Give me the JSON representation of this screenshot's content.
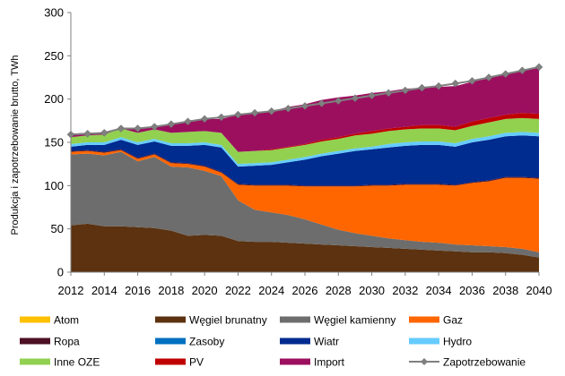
{
  "chart_data": {
    "type": "area",
    "stacked": true,
    "ylabel": "Produkcja i zapotrzebowanie brutto, TWh",
    "xlabel": "",
    "ylim": [
      0,
      300
    ],
    "yticks": [
      0,
      50,
      100,
      150,
      200,
      250,
      300
    ],
    "xlim": [
      2012,
      2040
    ],
    "xticks": [
      2012,
      2014,
      2016,
      2018,
      2020,
      2022,
      2024,
      2026,
      2028,
      2030,
      2032,
      2034,
      2036,
      2038,
      2040
    ],
    "grid": false,
    "legend_position": "bottom",
    "x": [
      2012,
      2013,
      2014,
      2015,
      2016,
      2017,
      2018,
      2019,
      2020,
      2021,
      2022,
      2023,
      2024,
      2025,
      2026,
      2027,
      2028,
      2029,
      2030,
      2031,
      2032,
      2033,
      2034,
      2035,
      2036,
      2037,
      2038,
      2039,
      2040
    ],
    "series": [
      {
        "name": "Atom",
        "color": "#ffc000",
        "values": [
          0,
          0,
          0,
          0,
          0,
          0,
          0,
          0,
          0,
          0,
          0,
          0,
          0,
          0,
          0,
          0,
          0,
          0,
          0,
          0,
          0,
          0,
          0,
          0,
          0,
          0,
          0,
          0,
          0
        ]
      },
      {
        "name": "Węgiel brunatny",
        "color": "#5c3210",
        "values": [
          54,
          56,
          53,
          53,
          52,
          51,
          48,
          42,
          43,
          42,
          36,
          35,
          35,
          34,
          33,
          32,
          31,
          30,
          29,
          28,
          27,
          26,
          25,
          24,
          23,
          23,
          22,
          20,
          17
        ]
      },
      {
        "name": "Węgiel kamienny",
        "color": "#6d6d6d",
        "values": [
          82,
          81,
          82,
          86,
          76,
          82,
          74,
          79,
          74,
          69,
          47,
          37,
          34,
          32,
          28,
          23,
          18,
          15,
          13,
          11,
          10,
          9,
          9,
          8,
          8,
          7,
          7,
          7,
          6
        ]
      },
      {
        "name": "Gaz",
        "color": "#ff6600",
        "values": [
          3,
          3,
          3,
          2,
          3,
          3,
          4,
          4,
          5,
          4,
          18,
          28,
          31,
          34,
          38,
          44,
          50,
          54,
          58,
          61,
          64,
          66,
          67,
          68,
          72,
          75,
          80,
          82,
          85
        ]
      },
      {
        "name": "Ropa",
        "color": "#4d0f24",
        "values": [
          1,
          1,
          1,
          1,
          1,
          1,
          1,
          1,
          1,
          1,
          1,
          1,
          1,
          1,
          1,
          1,
          1,
          1,
          1,
          1,
          1,
          1,
          1,
          1,
          1,
          1,
          1,
          1,
          1
        ]
      },
      {
        "name": "Zasoby",
        "color": "#0070c0",
        "values": [
          0,
          0,
          0,
          0,
          0,
          0,
          0,
          0,
          0,
          0,
          0,
          0,
          0,
          0,
          0,
          0,
          0,
          0,
          0,
          0,
          0,
          0,
          0,
          0,
          0,
          0,
          0,
          0,
          0
        ]
      },
      {
        "name": "Wiatr",
        "color": "#002b8f",
        "values": [
          5,
          6,
          8,
          11,
          15,
          14,
          19,
          20,
          24,
          28,
          20,
          22,
          23,
          26,
          30,
          34,
          37,
          40,
          41,
          43,
          44,
          45,
          45,
          44,
          46,
          47,
          47,
          48,
          48
        ]
      },
      {
        "name": "Hydro",
        "color": "#66ccff",
        "values": [
          3,
          3,
          3,
          3,
          3,
          3,
          3,
          3,
          3,
          3,
          3,
          3,
          3,
          3,
          3,
          3,
          3,
          3,
          3,
          4,
          4,
          4,
          4,
          4,
          4,
          4,
          4,
          4,
          4
        ]
      },
      {
        "name": "Inne OZE",
        "color": "#92d050",
        "values": [
          8,
          8,
          9,
          10,
          11,
          11,
          12,
          13,
          13,
          14,
          14,
          14,
          14,
          14,
          14,
          14,
          14,
          15,
          15,
          15,
          15,
          15,
          15,
          15,
          15,
          16,
          16,
          16,
          16
        ]
      },
      {
        "name": "PV",
        "color": "#c00000",
        "values": [
          0,
          0,
          0,
          0,
          0,
          0,
          0,
          0,
          0,
          0,
          0,
          0,
          1,
          1,
          1,
          2,
          2,
          2,
          3,
          3,
          3,
          4,
          4,
          4,
          5,
          5,
          5,
          6,
          6
        ]
      },
      {
        "name": "Import",
        "color": "#9c0f5f",
        "values": [
          4,
          3,
          2,
          1,
          5,
          2,
          10,
          12,
          14,
          16,
          43,
          44,
          44,
          46,
          46,
          46,
          46,
          44,
          44,
          43,
          44,
          43,
          44,
          47,
          46,
          46,
          47,
          49,
          53
        ]
      }
    ],
    "line_series": {
      "name": "Zapotrzebowanie",
      "color": "#808080",
      "marker": "diamond",
      "values": [
        159,
        160,
        161,
        166,
        166,
        168,
        171,
        174,
        177,
        179,
        182,
        184,
        186,
        189,
        192,
        195,
        198,
        201,
        204,
        207,
        210,
        213,
        215,
        218,
        221,
        225,
        229,
        233,
        237
      ]
    }
  }
}
